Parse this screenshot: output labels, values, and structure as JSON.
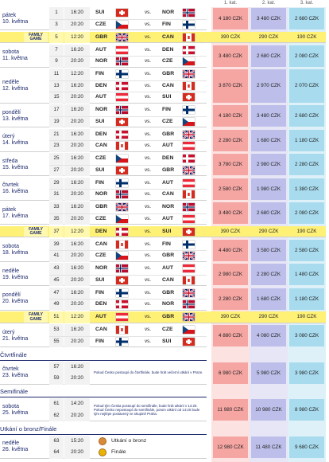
{
  "header": {
    "categories": [
      "1. kat.",
      "2. kat.",
      "3. kat."
    ]
  },
  "vs": "vs.",
  "flags": {
    "SUI": {
      "pattern": "cross",
      "colors": [
        "#d52b1e",
        "#ffffff"
      ]
    },
    "NOR": {
      "pattern": "nordic",
      "colors": [
        "#ba0c2f",
        "#ffffff",
        "#00205b"
      ]
    },
    "CZE": {
      "pattern": "cze",
      "colors": [
        "#ffffff",
        "#d7141a",
        "#11457e"
      ]
    },
    "FIN": {
      "pattern": "nordic",
      "colors": [
        "#ffffff",
        "#002f6c"
      ]
    },
    "GBR": {
      "pattern": "gbr",
      "colors": [
        "#012169",
        "#ffffff",
        "#c8102e"
      ]
    },
    "CAN": {
      "pattern": "v3",
      "colors": [
        "#d52b1e",
        "#ffffff",
        "#d52b1e"
      ]
    },
    "AUT": {
      "pattern": "h3",
      "colors": [
        "#ed2939",
        "#ffffff",
        "#ed2939"
      ]
    },
    "DEN": {
      "pattern": "nordic",
      "colors": [
        "#c8102e",
        "#ffffff"
      ]
    }
  },
  "schedule": [
    {
      "day": "pátek",
      "date": "10. května",
      "games": [
        {
          "number": 1,
          "time": "16:20",
          "home": "SUI",
          "away": "NOR"
        },
        {
          "number": 3,
          "time": "20:20",
          "home": "CZE",
          "away": "FIN"
        }
      ],
      "prices": [
        "4 180 CZK",
        "3 480 CZK",
        "2 680 CZK"
      ]
    },
    {
      "label": "FAMILY GAME",
      "games": [
        {
          "number": 5,
          "time": "12:20",
          "home": "GBR",
          "away": "CAN"
        }
      ],
      "prices": [
        "390 CZK",
        "290 CZK",
        "190 CZK"
      ]
    },
    {
      "day": "sobota",
      "date": "11. května",
      "games": [
        {
          "number": 7,
          "time": "16:20",
          "home": "AUT",
          "away": "DEN"
        },
        {
          "number": 9,
          "time": "20:20",
          "home": "NOR",
          "away": "CZE"
        }
      ],
      "prices": [
        "3 480 CZK",
        "2 680 CZK",
        "2 080 CZK"
      ]
    },
    {
      "day": "neděle",
      "date": "12. května",
      "games": [
        {
          "number": 11,
          "time": "12:20",
          "home": "FIN",
          "away": "GBR"
        },
        {
          "number": 13,
          "time": "16:20",
          "home": "DEN",
          "away": "CAN"
        },
        {
          "number": 15,
          "time": "20:20",
          "home": "AUT",
          "away": "SUI"
        }
      ],
      "prices": [
        "3 870 CZK",
        "2 970 CZK",
        "2 070 CZK"
      ]
    },
    {
      "day": "pondělí",
      "date": "13. května",
      "games": [
        {
          "number": 17,
          "time": "16:20",
          "home": "NOR",
          "away": "FIN"
        },
        {
          "number": 19,
          "time": "20:20",
          "home": "SUI",
          "away": "CZE"
        }
      ],
      "prices": [
        "4 180 CZK",
        "3 480 CZK",
        "2 680 CZK"
      ]
    },
    {
      "day": "úterý",
      "date": "14. května",
      "games": [
        {
          "number": 21,
          "time": "16:20",
          "home": "DEN",
          "away": "GBR"
        },
        {
          "number": 23,
          "time": "20:20",
          "home": "CAN",
          "away": "AUT"
        }
      ],
      "prices": [
        "2 280 CZK",
        "1 680 CZK",
        "1 180 CZK"
      ]
    },
    {
      "day": "středa",
      "date": "15. května",
      "games": [
        {
          "number": 25,
          "time": "16:20",
          "home": "CZE",
          "away": "DEN"
        },
        {
          "number": 27,
          "time": "20:20",
          "home": "SUI",
          "away": "GBR"
        }
      ],
      "prices": [
        "3 780 CZK",
        "2 980 CZK",
        "2 280 CZK"
      ]
    },
    {
      "day": "čtvrtek",
      "date": "16. května",
      "games": [
        {
          "number": 29,
          "time": "16:20",
          "home": "FIN",
          "away": "AUT"
        },
        {
          "number": 31,
          "time": "20:20",
          "home": "NOR",
          "away": "CAN"
        }
      ],
      "prices": [
        "2 580 CZK",
        "1 980 CZK",
        "1 380 CZK"
      ]
    },
    {
      "day": "pátek",
      "date": "17. května",
      "games": [
        {
          "number": 33,
          "time": "16:20",
          "home": "GBR",
          "away": "NOR"
        },
        {
          "number": 35,
          "time": "20:20",
          "home": "CZE",
          "away": "AUT"
        }
      ],
      "prices": [
        "3 480 CZK",
        "2 680 CZK",
        "2 080 CZK"
      ]
    },
    {
      "label": "FAMILY GAME",
      "games": [
        {
          "number": 37,
          "time": "12:20",
          "home": "DEN",
          "away": "SUI"
        }
      ],
      "prices": [
        "390 CZK",
        "290 CZK",
        "190 CZK"
      ]
    },
    {
      "day": "sobota",
      "date": "18. května",
      "games": [
        {
          "number": 39,
          "time": "16:20",
          "home": "CAN",
          "away": "FIN"
        },
        {
          "number": 41,
          "time": "20:20",
          "home": "CZE",
          "away": "GBR"
        }
      ],
      "prices": [
        "4 480 CZK",
        "3 580 CZK",
        "2 580 CZK"
      ]
    },
    {
      "day": "neděle",
      "date": "19. května",
      "games": [
        {
          "number": 43,
          "time": "16:20",
          "home": "NOR",
          "away": "AUT"
        },
        {
          "number": 45,
          "time": "20:20",
          "home": "SUI",
          "away": "CAN"
        }
      ],
      "prices": [
        "2 980 CZK",
        "2 280 CZK",
        "1 480 CZK"
      ]
    },
    {
      "day": "pondělí",
      "date": "20. května",
      "games": [
        {
          "number": 47,
          "time": "16:20",
          "home": "FIN",
          "away": "GBR"
        },
        {
          "number": 49,
          "time": "20:20",
          "home": "DEN",
          "away": "NOR"
        }
      ],
      "prices": [
        "2 280 CZK",
        "1 680 CZK",
        "1 180 CZK"
      ]
    },
    {
      "label": "FAMILY GAME",
      "games": [
        {
          "number": 51,
          "time": "12:20",
          "home": "AUT",
          "away": "GBR"
        }
      ],
      "prices": [
        "390 CZK",
        "290 CZK",
        "190 CZK"
      ]
    },
    {
      "day": "úterý",
      "date": "21. května",
      "games": [
        {
          "number": 53,
          "time": "16:20",
          "home": "CAN",
          "away": "CZE"
        },
        {
          "number": 55,
          "time": "20:20",
          "home": "FIN",
          "away": "SUI"
        }
      ],
      "prices": [
        "4 880 CZK",
        "4 080 CZK",
        "3 080 CZK"
      ]
    }
  ],
  "playoffs": [
    {
      "title": "Čtvrtfinále",
      "day": "čtvrtek",
      "date": "23. května",
      "games": [
        {
          "number": 57,
          "time": "16:20"
        },
        {
          "number": 59,
          "time": "20:20"
        }
      ],
      "note": "Pokud Česko postoupí do čtvrtfinále, bude hrát večerní utkání v Praze.",
      "prices": [
        "6 980 CZK",
        "5 980 CZK",
        "3 980 CZK"
      ]
    },
    {
      "title": "Semifinále",
      "day": "sobota",
      "date": "25. května",
      "games": [
        {
          "number": 61,
          "time": "14:20"
        },
        {
          "number": 62,
          "time": "20:20"
        }
      ],
      "note": "Pokud tým Česka postoupí do semifinále, bude hrát utkání v 14:20. Pokud Česko nepostoupí do semifinále, potom utkání od 14:20 bude tým nejlépe postavený ve skupině Praha.",
      "prices": [
        "11 980 CZK",
        "10 980 CZK",
        "8 980 CZK"
      ]
    },
    {
      "title": "Utkání o bronz/Finále",
      "day": "neděle",
      "date": "26. května",
      "games": [
        {
          "number": 63,
          "time": "15:20",
          "title": "Utkání o bronz"
        },
        {
          "number": 64,
          "time": "20:20",
          "title": "Finále"
        }
      ],
      "prices": [
        "12 980 CZK",
        "11 480 CZK",
        "9 680 CZK"
      ]
    }
  ]
}
